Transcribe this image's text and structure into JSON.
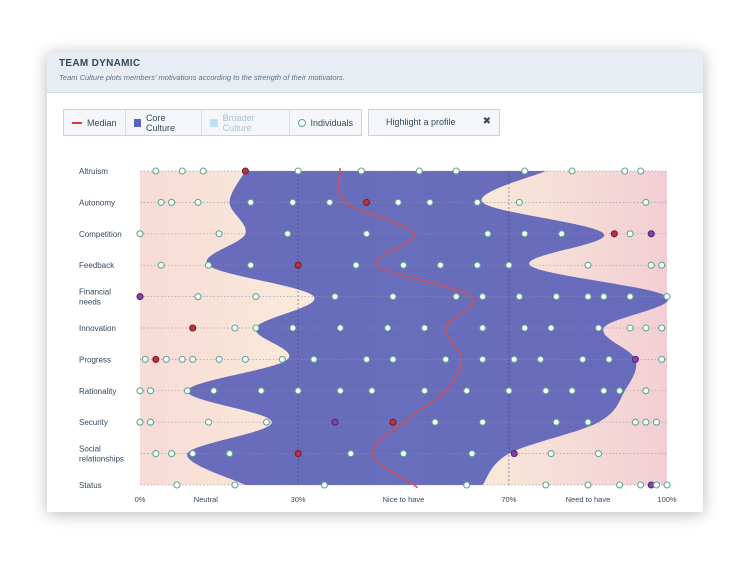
{
  "header": {
    "title": "TEAM DYNAMIC",
    "subtitle": "Team Culture plots members' motivations according to the strength of their motivators."
  },
  "legend": {
    "median": "Median",
    "core": "Core Culture",
    "broader": "Broader Culture",
    "individuals": "Individuals"
  },
  "highlight": {
    "label": "Highlight a profile",
    "clear_icon": "close-icon"
  },
  "colors": {
    "core": "#5b62b9",
    "median": "#c8555f",
    "individual_stroke": "#5fa796",
    "highlight_red": "#c0303e",
    "highlight_purple": "#8a3fb0",
    "gradient_left": "#f7dbd6",
    "gradient_mid": "#fbf4dc",
    "gradient_right": "#f2ced4"
  },
  "chart_data": {
    "type": "area",
    "x_ticks": [
      {
        "value": 0,
        "label": "0%"
      },
      {
        "value": 12.5,
        "label": "Neutral"
      },
      {
        "value": 30,
        "label": "30%"
      },
      {
        "value": 50,
        "label": "Nice to have"
      },
      {
        "value": 70,
        "label": "70%"
      },
      {
        "value": 85,
        "label": "Need to have"
      },
      {
        "value": 100,
        "label": "100%"
      }
    ],
    "xlim": [
      0,
      100
    ],
    "grid": true,
    "categories": [
      "Altruism",
      "Autonomy",
      "Competition",
      "Feedback",
      "Financial needs",
      "Innovation",
      "Progress",
      "Rationality",
      "Security",
      "Social relationships",
      "Status"
    ],
    "core_culture": {
      "low": [
        20,
        17,
        20,
        13,
        33,
        22,
        28,
        9,
        25,
        9,
        20
      ],
      "high": [
        77,
        65,
        88,
        74,
        100,
        88,
        94,
        92,
        87,
        70,
        65
      ]
    },
    "median": [
      38,
      39,
      52,
      45,
      63,
      58,
      61,
      58,
      50,
      44,
      52
    ],
    "individuals": [
      {
        "category": "Altruism",
        "values": [
          3,
          8,
          12,
          20,
          30,
          42,
          53,
          60,
          73,
          82,
          92,
          95
        ],
        "highlight_red": [
          20
        ],
        "highlight_purple": [
          74
        ]
      },
      {
        "category": "Autonomy",
        "values": [
          4,
          6,
          11,
          21,
          29,
          36,
          43,
          49,
          55,
          64,
          72,
          96
        ],
        "highlight_red": [
          43
        ],
        "highlight_purple": [
          54
        ]
      },
      {
        "category": "Competition",
        "values": [
          0,
          15,
          28,
          43,
          66,
          73,
          80,
          90,
          93,
          97
        ],
        "highlight_red": [
          90
        ],
        "highlight_purple": [
          97
        ]
      },
      {
        "category": "Feedback",
        "values": [
          4,
          13,
          21,
          30,
          41,
          50,
          57,
          64,
          70,
          85,
          97,
          99
        ],
        "highlight_red": [
          30
        ],
        "highlight_purple": [
          98
        ]
      },
      {
        "category": "Financial needs",
        "values": [
          0,
          11,
          22,
          37,
          48,
          60,
          65,
          72,
          79,
          85,
          88,
          93,
          100
        ],
        "highlight_red": [
          64
        ],
        "highlight_purple": [
          0
        ]
      },
      {
        "category": "Innovation",
        "values": [
          10,
          18,
          22,
          29,
          38,
          47,
          54,
          65,
          73,
          78,
          87,
          93,
          96,
          99
        ],
        "highlight_red": [
          10
        ],
        "highlight_purple": [
          95
        ]
      },
      {
        "category": "Progress",
        "values": [
          1,
          3,
          5,
          8,
          10,
          15,
          20,
          27,
          33,
          43,
          48,
          58,
          65,
          71,
          76,
          84,
          89,
          94,
          99
        ],
        "highlight_red": [
          3
        ],
        "highlight_purple": [
          94
        ]
      },
      {
        "category": "Rationality",
        "values": [
          0,
          2,
          9,
          14,
          23,
          30,
          38,
          44,
          54,
          62,
          70,
          77,
          82,
          88,
          91,
          96
        ],
        "highlight_red": [
          22
        ],
        "highlight_purple": [
          90
        ]
      },
      {
        "category": "Security",
        "values": [
          0,
          2,
          13,
          24,
          37,
          48,
          56,
          65,
          79,
          85,
          94,
          96,
          98
        ],
        "highlight_red": [
          48
        ],
        "highlight_purple": [
          37
        ]
      },
      {
        "category": "Social relationships",
        "values": [
          3,
          6,
          10,
          17,
          30,
          40,
          50,
          63,
          71,
          78,
          87
        ],
        "highlight_red": [
          30
        ],
        "highlight_purple": [
          71
        ]
      },
      {
        "category": "Status",
        "values": [
          7,
          18,
          35,
          62,
          77,
          85,
          91,
          95,
          97,
          98,
          100
        ],
        "highlight_red": [
          78
        ],
        "highlight_purple": [
          50,
          97
        ]
      }
    ]
  }
}
